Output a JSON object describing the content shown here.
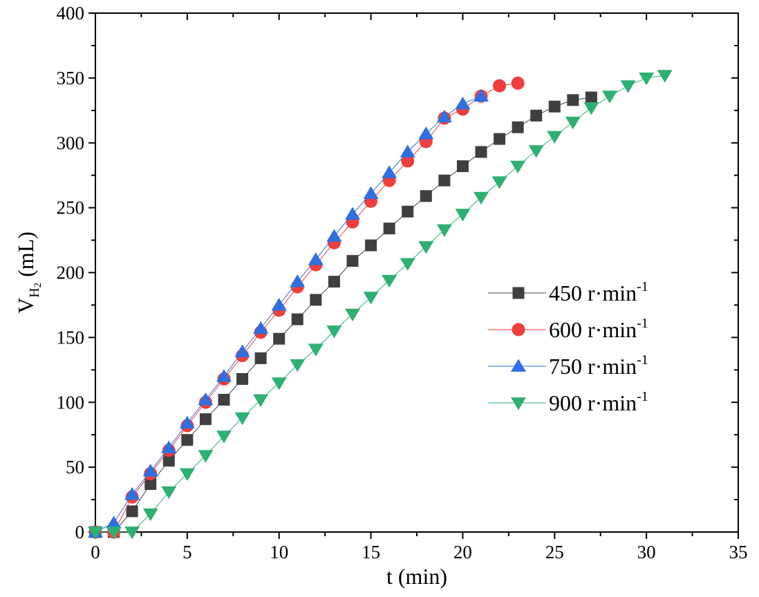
{
  "chart_data": {
    "type": "line",
    "xlabel": "t (min)",
    "ylabel": {
      "main": "V",
      "sub": "H",
      "subsub": "2",
      "unit": " (mL)"
    },
    "xlim": [
      0,
      35
    ],
    "ylim": [
      0,
      400
    ],
    "x_ticks": [
      0,
      5,
      10,
      15,
      20,
      25,
      30,
      35
    ],
    "y_ticks": [
      0,
      50,
      100,
      150,
      200,
      250,
      300,
      350,
      400
    ],
    "grid": false,
    "legend_position": "right",
    "series": [
      {
        "name": {
          "value": "450 r·min",
          "sup": "-1"
        },
        "marker": "square",
        "color": "#3f3f3f",
        "x": [
          0,
          1,
          2,
          3,
          4,
          5,
          6,
          7,
          8,
          9,
          10,
          11,
          12,
          13,
          14,
          15,
          16,
          17,
          18,
          19,
          20,
          21,
          22,
          23,
          24,
          25,
          26,
          27
        ],
        "y": [
          0,
          0,
          16,
          37,
          55,
          71,
          87,
          102,
          118,
          134,
          149,
          164,
          179,
          193,
          209,
          221,
          234,
          247,
          259,
          271,
          282,
          293,
          303,
          312,
          321,
          328,
          333,
          335
        ]
      },
      {
        "name": {
          "value": "600 r·min",
          "sup": "-1"
        },
        "marker": "circle",
        "color": "#ef3e3e",
        "x": [
          0,
          1,
          2,
          3,
          4,
          5,
          6,
          7,
          8,
          9,
          10,
          11,
          12,
          13,
          14,
          15,
          16,
          17,
          18,
          19,
          20,
          21,
          22,
          23
        ],
        "y": [
          0,
          0,
          27,
          45,
          63,
          82,
          100,
          118,
          136,
          154,
          171,
          189,
          206,
          223,
          239,
          255,
          271,
          286,
          301,
          319,
          326,
          336,
          344,
          346
        ]
      },
      {
        "name": {
          "value": "750 r·min",
          "sup": "-1"
        },
        "marker": "triangle-up",
        "color": "#2f6fe0",
        "x": [
          0,
          1,
          2,
          3,
          4,
          5,
          6,
          7,
          8,
          9,
          10,
          11,
          12,
          13,
          14,
          15,
          16,
          17,
          18,
          19,
          20,
          21
        ],
        "y": [
          0,
          7,
          29,
          47,
          65,
          84,
          102,
          120,
          139,
          157,
          175,
          193,
          210,
          228,
          245,
          261,
          277,
          293,
          307,
          320,
          330,
          336
        ]
      },
      {
        "name": {
          "value": "900 r·min",
          "sup": "-1"
        },
        "marker": "triangle-down",
        "color": "#2fb073",
        "x": [
          0,
          1,
          2,
          3,
          4,
          5,
          6,
          7,
          8,
          9,
          10,
          11,
          12,
          13,
          14,
          15,
          16,
          17,
          18,
          19,
          20,
          21,
          22,
          23,
          24,
          25,
          26,
          27,
          28,
          29,
          30,
          31
        ],
        "y": [
          0,
          0,
          0,
          14,
          31,
          45,
          59,
          74,
          88,
          102,
          115,
          129,
          141,
          155,
          168,
          181,
          194,
          207,
          220,
          233,
          245,
          258,
          270,
          282,
          294,
          305,
          316,
          327,
          336,
          344,
          350,
          352
        ]
      }
    ]
  }
}
